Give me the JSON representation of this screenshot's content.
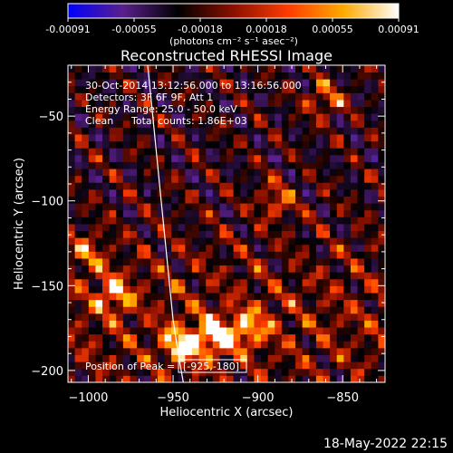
{
  "chart_data": {
    "type": "heatmap",
    "title": "Reconstructed RHESSI Image",
    "xlabel": "Heliocentric X (arcsec)",
    "ylabel": "Heliocentric Y (arcsec)",
    "xlim": [
      -1012,
      -825
    ],
    "ylim": [
      -207,
      -20
    ],
    "x_ticks": [
      -1000,
      -950,
      -900,
      -850
    ],
    "x_tick_labels": [
      "−1000",
      "−950",
      "−900",
      "−850"
    ],
    "y_ticks": [
      -50,
      -100,
      -150,
      -200
    ],
    "y_tick_labels": [
      "−50",
      "−100",
      "−150",
      "−200"
    ],
    "colorbar": {
      "range": [
        -0.00091,
        0.00091
      ],
      "tick_labels": [
        "-0.00091",
        "-0.00055",
        "-0.00018",
        "0.00018",
        "0.00055",
        "0.00091"
      ],
      "unit_label": "(photons cm⁻² s⁻¹ asec⁻²)",
      "colors": [
        "#0000ff",
        "#5a1f8c",
        "#000000",
        "#8b1000",
        "#ff3c00",
        "#ffaa00",
        "#ffffff"
      ]
    },
    "annotations": {
      "time_range": "30-Oct-2014 13:12:56.000 to 13:16:56.000",
      "detectors": "Detectors: 3F 6F 9F, Att 1",
      "energy_range": "Energy Range: 25.0 - 50.0 keV",
      "clean": "Clean",
      "total_counts": "Total counts: 1.86E+03",
      "peak_label": "Position of Peak =",
      "peak_value": "[-925,-180]"
    },
    "limb_curve": {
      "x": [
        -965,
        -961,
        -957,
        -953,
        -950,
        -947,
        -944
      ],
      "y": [
        -20,
        -60,
        -100,
        -140,
        -170,
        -190,
        -207
      ]
    },
    "image": {
      "description_of_values": "Pixel grid of reconstructed flux; mixed positive (red/yellow) and negative (blue/purple) ringing pattern with strongest emission around x=-940..-900, y=-200..-150",
      "nx": 46,
      "ny": 46,
      "hot_spots": [
        {
          "x": -925,
          "y": -180,
          "v": 0.00091
        },
        {
          "x": -945,
          "y": -185,
          "v": 0.00085
        },
        {
          "x": -905,
          "y": -175,
          "v": 0.0007
        },
        {
          "x": -985,
          "y": -155,
          "v": 0.00065
        },
        {
          "x": -860,
          "y": -40,
          "v": 0.0006
        },
        {
          "x": -890,
          "y": -100,
          "v": 0.00055
        },
        {
          "x": -1000,
          "y": -130,
          "v": 0.0005
        }
      ]
    }
  },
  "footer_timestamp": "18-May-2022 22:15"
}
